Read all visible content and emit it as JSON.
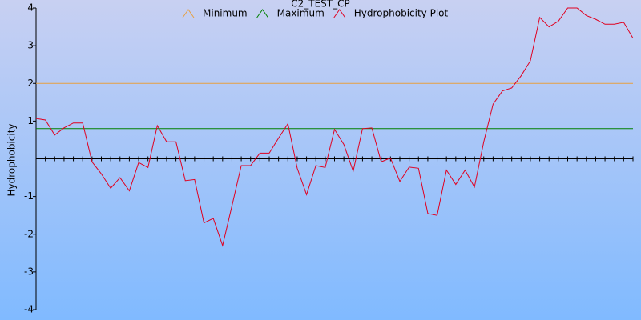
{
  "chart_data": {
    "type": "line",
    "title": "C2_TEST_CP",
    "y_label": "Hydrophobicity",
    "ylim": [
      -4,
      4
    ],
    "yticks": [
      -4,
      -3,
      -2,
      -1,
      1,
      2,
      3,
      4
    ],
    "series": [
      {
        "name": "Minimum",
        "color": "#e8a040",
        "values": [
          2
        ]
      },
      {
        "name": "Maximum",
        "color": "#008000",
        "values": [
          0.8
        ]
      },
      {
        "name": "Hydrophobicity Plot",
        "color": "#e00020",
        "values": [
          1.07,
          1.03,
          0.63,
          0.82,
          0.95,
          0.95,
          -0.08,
          -0.4,
          -0.78,
          -0.5,
          -0.85,
          -0.1,
          -0.23,
          0.88,
          0.45,
          0.45,
          -0.58,
          -0.55,
          -1.7,
          -1.58,
          -2.3,
          -1.25,
          -0.18,
          -0.18,
          0.15,
          0.15,
          0.55,
          0.93,
          -0.25,
          -0.95,
          -0.18,
          -0.23,
          0.78,
          0.38,
          -0.33,
          0.8,
          0.82,
          -0.08,
          0.02,
          -0.6,
          -0.22,
          -0.25,
          -1.45,
          -1.5,
          -0.3,
          -0.68,
          -0.3,
          -0.75,
          0.45,
          1.45,
          1.8,
          1.88,
          2.2,
          2.6,
          3.75,
          3.5,
          3.65,
          4.0,
          4.0,
          3.8,
          3.7,
          3.57,
          3.57,
          3.62,
          3.2
        ]
      }
    ]
  }
}
